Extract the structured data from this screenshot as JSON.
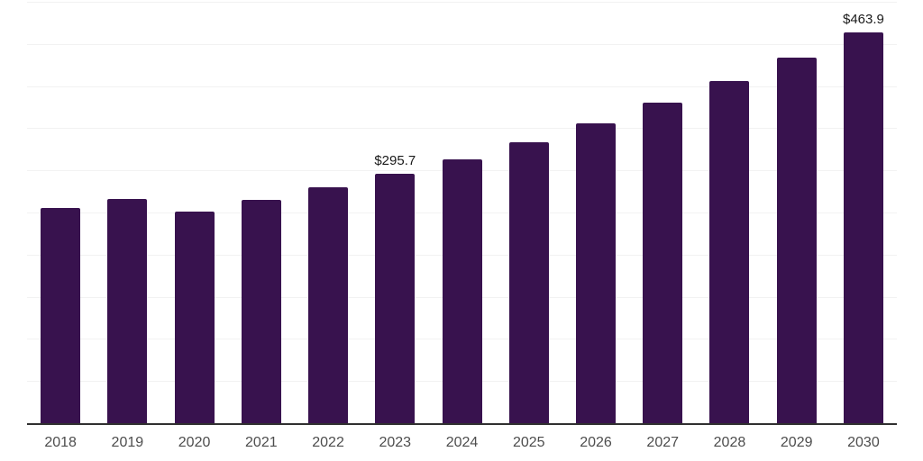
{
  "chart_data": {
    "type": "bar",
    "title": "",
    "categories": [
      "2018",
      "2019",
      "2020",
      "2021",
      "2022",
      "2023",
      "2024",
      "2025",
      "2026",
      "2027",
      "2028",
      "2029",
      "2030"
    ],
    "values": [
      255,
      266,
      251,
      265,
      280,
      295.7,
      313,
      333,
      356,
      380,
      406,
      434,
      463.9
    ],
    "point_labels": [
      "",
      "",
      "",
      "",
      "",
      "$295.7",
      "",
      "",
      "",
      "",
      "",
      "",
      "$463.9"
    ],
    "xlabel": "",
    "ylabel": "",
    "ylim": [
      0,
      500
    ],
    "gridline_step": 50,
    "grid": true,
    "legend_position": "none",
    "bar_color": "#38124e"
  },
  "style": {
    "background_color": "#ffffff",
    "gridline_color": "#f2f2f2",
    "axis_line_color": "#303030",
    "tick_label_color": "#4d4d4d",
    "value_label_color": "#1a1a1a"
  }
}
